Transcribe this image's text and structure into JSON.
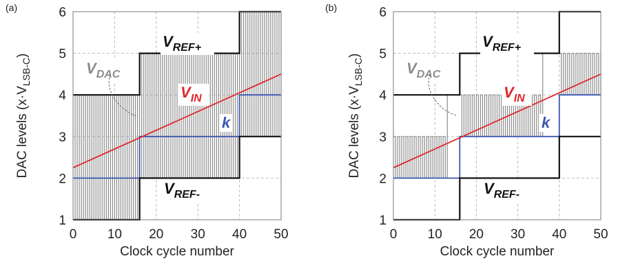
{
  "colors": {
    "vdac": "#8c8c8c",
    "vin": "#e0262b",
    "k": "#3a55b4",
    "vref": "#111111",
    "grid": "#bdbdbd"
  },
  "chart_data": [
    {
      "type": "line",
      "panel_label": "(a)",
      "xlabel": "Clock cycle number",
      "ylabel": {
        "main": "DAC levels (x·V",
        "sub": "LSB-C",
        "end": ")"
      },
      "xlim": [
        0,
        50
      ],
      "ylim": [
        1,
        6
      ],
      "xticks": [
        0,
        10,
        20,
        30,
        40,
        50
      ],
      "yticks": [
        1,
        2,
        3,
        4,
        5,
        6
      ],
      "grid": true,
      "annotations": {
        "vref_plus": {
          "main": "V",
          "sub": "REF+"
        },
        "vref_minus": {
          "main": "V",
          "sub": "REF-"
        },
        "vdac": {
          "main": "V",
          "sub": "DAC"
        },
        "vin": {
          "main": "V",
          "sub": "IN"
        },
        "k": "k"
      },
      "vin_line": {
        "x": [
          0,
          50
        ],
        "y": [
          2.25,
          4.5
        ]
      },
      "vref_plus_steps": [
        [
          0,
          16,
          4
        ],
        [
          16,
          40,
          5
        ],
        [
          40,
          50,
          6
        ]
      ],
      "vref_minus_steps": [
        [
          0,
          16,
          1
        ],
        [
          16,
          40,
          2
        ],
        [
          40,
          50,
          3
        ]
      ],
      "k_steps": [
        [
          0,
          16,
          2
        ],
        [
          16,
          40,
          3
        ],
        [
          40,
          50,
          4
        ]
      ],
      "vdac_segments": [
        {
          "from": 0,
          "to": 16,
          "high": 4,
          "low": 1,
          "toggle_until": 16
        },
        {
          "from": 16,
          "to": 40,
          "high": 5,
          "low": 2,
          "toggle_until": 40
        },
        {
          "from": 40,
          "to": 50,
          "high": 6,
          "low": 3,
          "toggle_until": 50
        }
      ]
    },
    {
      "type": "line",
      "panel_label": "(b)",
      "xlabel": "Clock cycle number",
      "ylabel": {
        "main": "DAC levels (x·V",
        "sub": "LSB-C",
        "end": ")"
      },
      "xlim": [
        0,
        50
      ],
      "ylim": [
        1,
        6
      ],
      "xticks": [
        0,
        10,
        20,
        30,
        40,
        50
      ],
      "yticks": [
        1,
        2,
        3,
        4,
        5,
        6
      ],
      "grid": true,
      "annotations": {
        "vref_plus": {
          "main": "V",
          "sub": "REF+"
        },
        "vref_minus": {
          "main": "V",
          "sub": "REF-"
        },
        "vdac": {
          "main": "V",
          "sub": "DAC"
        },
        "vin": {
          "main": "V",
          "sub": "IN"
        },
        "k": "k"
      },
      "vin_line": {
        "x": [
          0,
          50
        ],
        "y": [
          2.25,
          4.5
        ]
      },
      "vref_plus_steps": [
        [
          0,
          16,
          4
        ],
        [
          16,
          40,
          5
        ],
        [
          40,
          50,
          6
        ]
      ],
      "vref_minus_steps": [
        [
          0,
          16,
          1
        ],
        [
          16,
          40,
          2
        ],
        [
          40,
          50,
          3
        ]
      ],
      "k_steps": [
        [
          0,
          16,
          2
        ],
        [
          16,
          40,
          3
        ],
        [
          40,
          50,
          4
        ]
      ],
      "vdac_segments": [
        {
          "from": 0,
          "to": 16,
          "high": 3,
          "low": 2,
          "toggle_until": 13,
          "rest": 4
        },
        {
          "from": 16,
          "to": 40,
          "high": 4,
          "low": 3,
          "toggle_until": 36,
          "rest": 5
        },
        {
          "from": 40,
          "to": 50,
          "high": 5,
          "low": 4,
          "toggle_until": 50
        }
      ]
    }
  ]
}
